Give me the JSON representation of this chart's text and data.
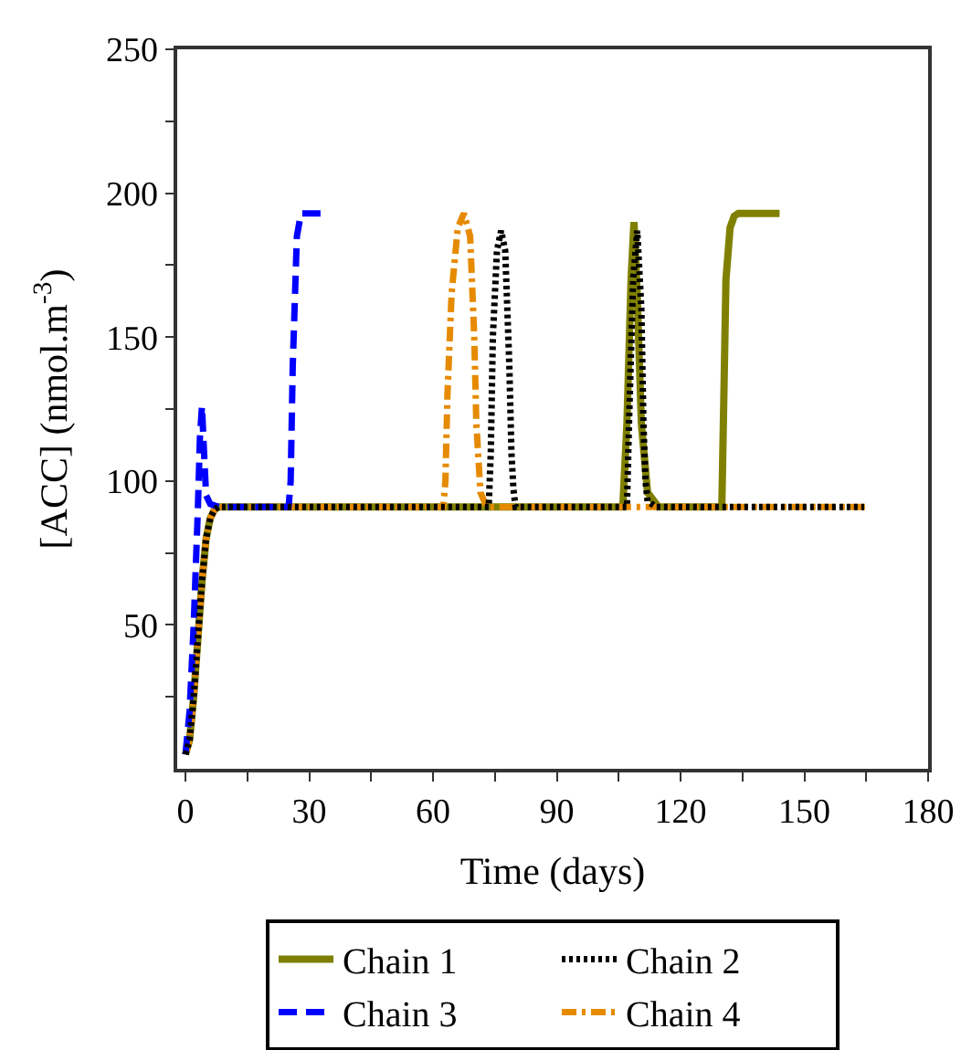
{
  "chart_data": {
    "type": "line",
    "xlabel": "Time (days)",
    "ylabel": "[ACC] (nmol.m$^{-3}$)",
    "xlim": [
      -2,
      180
    ],
    "ylim": [
      0,
      250
    ],
    "xticks": [
      0,
      {
        "value": 15,
        "label": null
      },
      30,
      {
        "value": 45,
        "label": null
      },
      60,
      {
        "value": 75,
        "label": null
      },
      90,
      {
        "value": 105,
        "label": null
      },
      120,
      {
        "value": 135,
        "label": null
      },
      150,
      {
        "value": 165,
        "label": null
      },
      180
    ],
    "yticks": [
      {
        "value": 25,
        "label": null
      },
      50,
      {
        "value": 75,
        "label": null
      },
      100,
      {
        "value": 125,
        "label": null
      },
      150,
      {
        "value": 175,
        "label": null
      },
      200,
      {
        "value": 225,
        "label": null
      },
      250
    ],
    "legend": "bottom",
    "marker": "none",
    "series": [
      {
        "name": "Chain 1",
        "color": "#808000",
        "line_style": "solid",
        "x": [
          0,
          1,
          2,
          3,
          4,
          5,
          6,
          7,
          8,
          10,
          106,
          107,
          108,
          108.7,
          109.5,
          110.5,
          112,
          114.6,
          130,
          130.5,
          131,
          132,
          133,
          134,
          144
        ],
        "values": [
          5,
          10,
          25,
          45,
          65,
          80,
          87,
          90,
          91,
          91,
          91,
          120,
          170,
          190,
          165,
          120,
          96,
          91,
          91,
          130,
          170,
          188,
          192,
          193,
          193
        ]
      },
      {
        "name": "Chain 2",
        "color": "#000000",
        "line_style": "dotted",
        "x": [
          0,
          1,
          2,
          3,
          4,
          5,
          6,
          7,
          8,
          10,
          73.5,
          74,
          74.5,
          75.5,
          76.5,
          77.5,
          78.5,
          79,
          79.5,
          80,
          107,
          107.5,
          108.5,
          109.5,
          110.5,
          111,
          111.5,
          112,
          114,
          164.5
        ],
        "values": [
          5,
          10,
          25,
          45,
          65,
          80,
          87,
          90,
          91,
          91,
          91,
          110,
          150,
          180,
          187,
          180,
          140,
          110,
          97,
          91,
          91,
          120,
          170,
          187,
          160,
          120,
          100,
          93,
          91,
          91
        ]
      },
      {
        "name": "Chain 3",
        "color": "#0000ff",
        "line_style": "dashed",
        "x": [
          0,
          1,
          2,
          3,
          3.5,
          4,
          4.5,
          5,
          6,
          8,
          25,
          25.5,
          26,
          27,
          28,
          29,
          30,
          34
        ],
        "values": [
          5,
          20,
          50,
          90,
          115,
          126,
          110,
          95,
          92,
          91,
          91,
          100,
          140,
          185,
          193,
          193,
          193,
          193
        ]
      },
      {
        "name": "Chain 4",
        "color": "#e68a00",
        "line_style": "dashdot",
        "x": [
          0,
          1,
          2,
          3,
          4,
          5,
          6,
          7,
          8,
          10,
          62.5,
          63,
          63.5,
          64.5,
          66,
          67.5,
          69,
          70,
          70.5,
          71.5,
          73,
          166
        ],
        "values": [
          5,
          10,
          25,
          45,
          65,
          80,
          87,
          90,
          91,
          91,
          91,
          100,
          130,
          165,
          188,
          193,
          185,
          150,
          120,
          96,
          91,
          91
        ]
      }
    ]
  }
}
